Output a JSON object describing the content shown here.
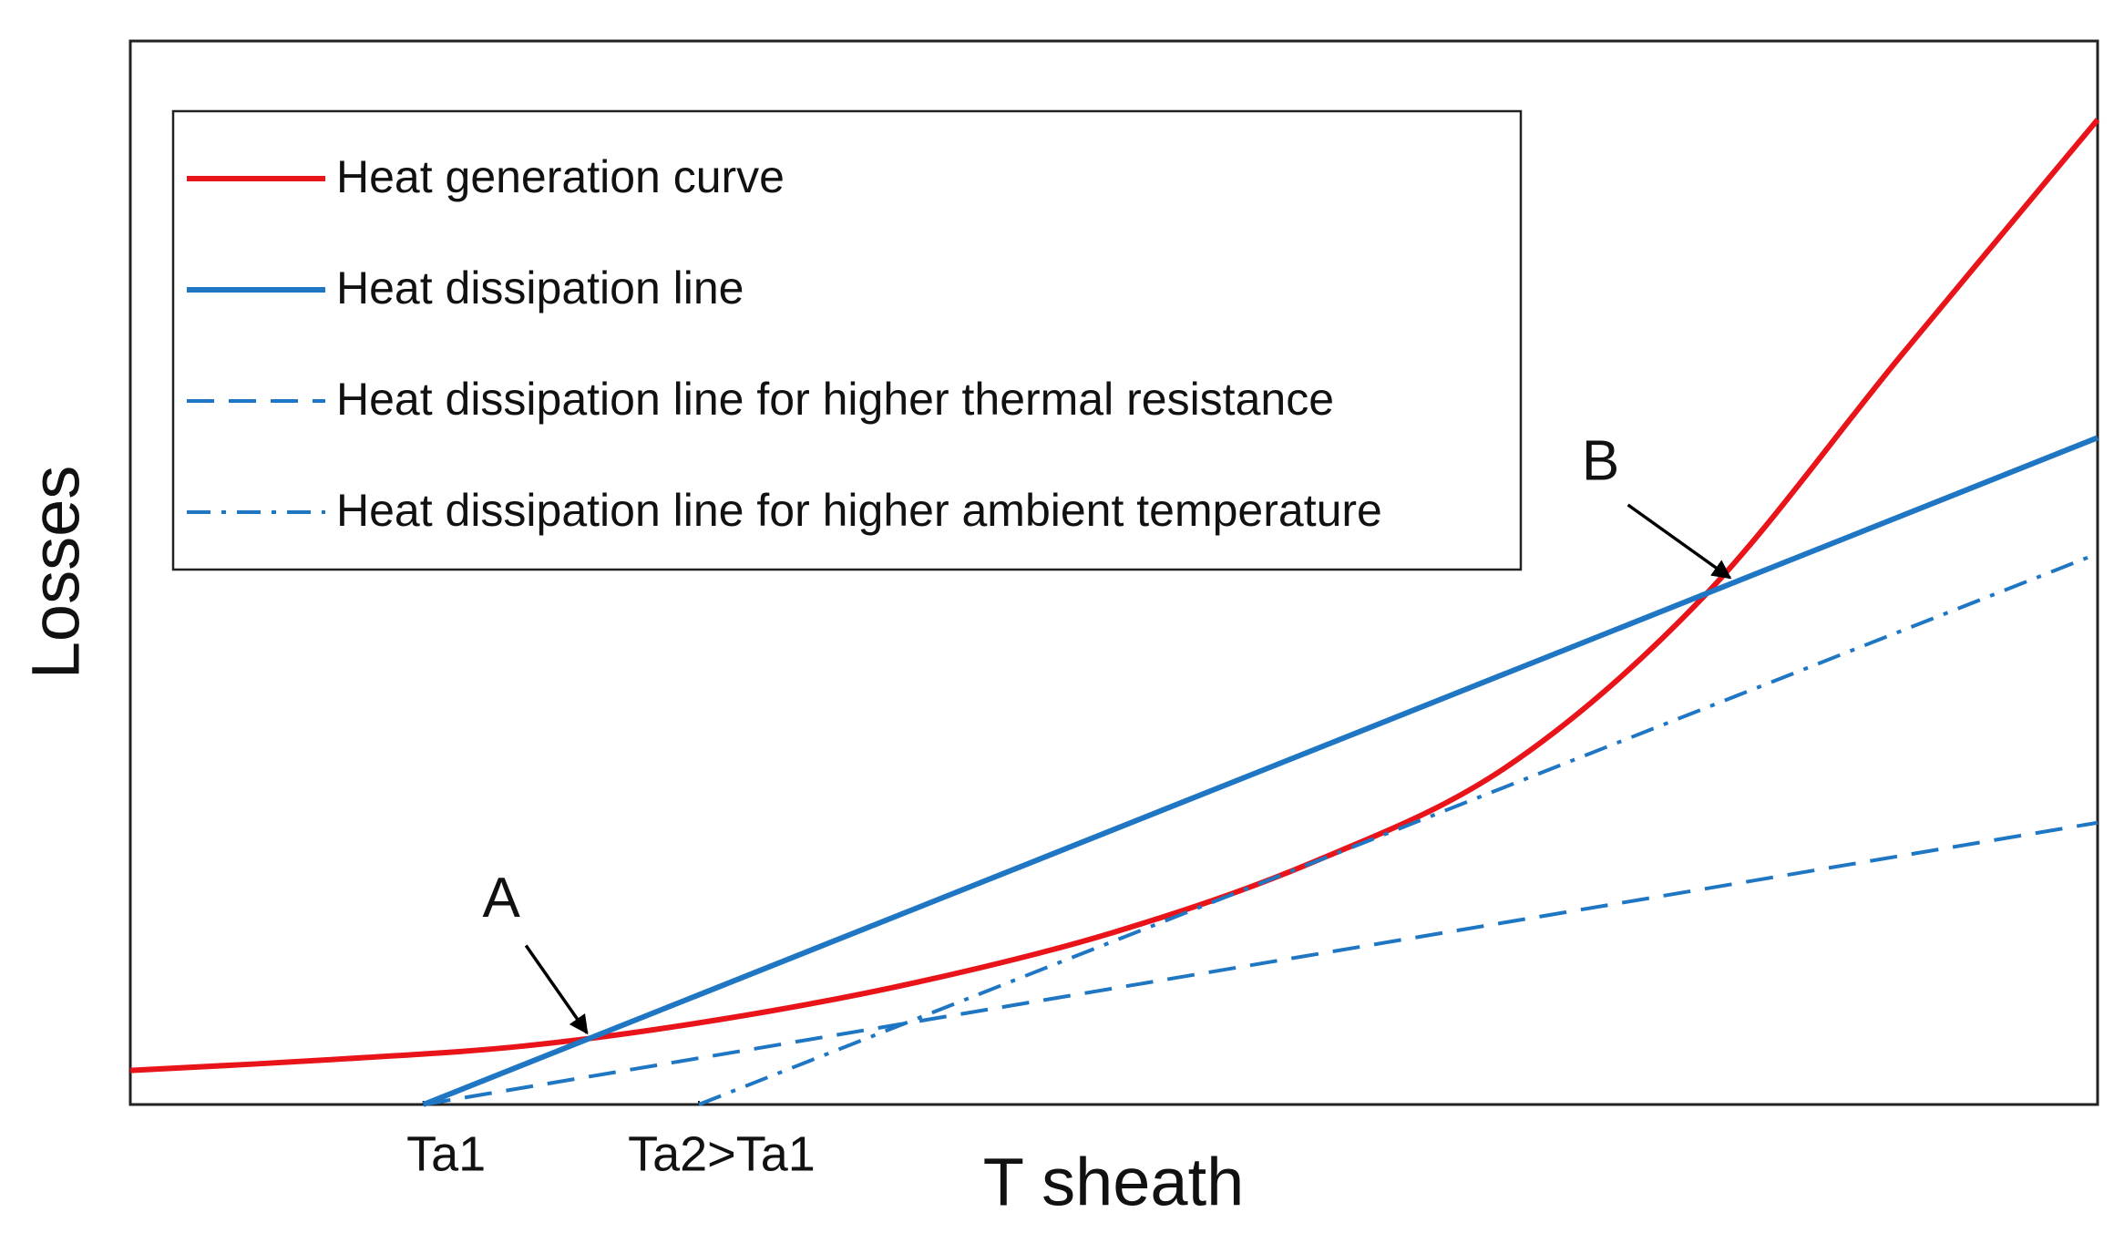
{
  "chart_data": {
    "type": "line",
    "xlabel": "T sheath",
    "ylabel": "Losses",
    "xlim": [
      0,
      100
    ],
    "ylim": [
      0,
      100
    ],
    "xticks": [
      {
        "value": 14.9,
        "label": "Ta1"
      },
      {
        "value": 28.9,
        "label": "Ta2>Ta1"
      }
    ],
    "yticks": [],
    "grid": false,
    "legend": "upper left",
    "series": [
      {
        "name": "Heat generation curve",
        "color": "#e8141a",
        "style": "solid",
        "x": [
          0,
          10,
          20,
          30,
          40,
          50,
          60,
          70,
          80,
          90,
          100
        ],
        "values": [
          3.2,
          4.2,
          5.5,
          8.0,
          11.5,
          16.2,
          22.7,
          31.8,
          47.8,
          70.4,
          92.6
        ]
      },
      {
        "name": "Heat dissipation line",
        "color": "#1f77c4",
        "style": "solid",
        "x": [
          14.9,
          100
        ],
        "values": [
          0,
          62.7
        ]
      },
      {
        "name": "Heat dissipation line for higher thermal resistance",
        "color": "#1f77c4",
        "style": "dashed",
        "x": [
          14.9,
          100
        ],
        "values": [
          0,
          26.5
        ]
      },
      {
        "name": "Heat dissipation line for higher ambient temperature",
        "color": "#1f77c4",
        "style": "dashdot",
        "x": [
          28.9,
          100
        ],
        "values": [
          0,
          51.8
        ]
      }
    ],
    "annotations": [
      {
        "text": "A",
        "x": 23.4,
        "y": 6.3
      },
      {
        "text": "B",
        "x": 81.5,
        "y": 49.1
      }
    ]
  }
}
